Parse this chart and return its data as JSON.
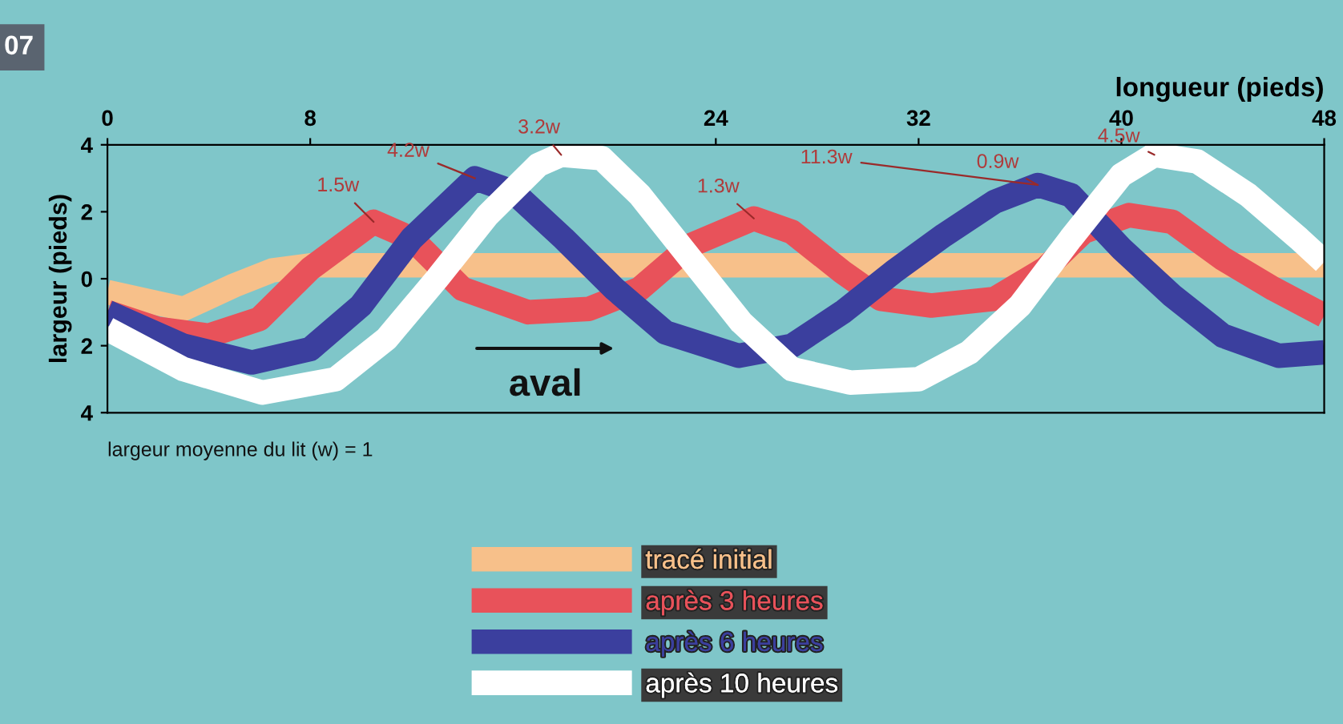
{
  "chart_data": {
    "type": "line",
    "xlabel": "longueur (pieds)",
    "ylabel": "largeur (pieds)",
    "xlim": [
      0,
      48
    ],
    "xticks": [
      0,
      8,
      24,
      32,
      40,
      48
    ],
    "ylim": [
      -4,
      4
    ],
    "yticks": [
      {
        "value": -4,
        "label": "4"
      },
      {
        "value": -2,
        "label": "2"
      },
      0,
      2,
      4
    ],
    "grid": false,
    "legend": "bottom",
    "marker": "none",
    "line_style": "solid",
    "series": [
      {
        "name": "tracé initial",
        "color": "#f7c08a",
        "x": [
          0,
          3,
          5,
          6.5,
          8,
          48
        ],
        "values": [
          -0.4,
          -0.9,
          -0.2,
          0.25,
          0.4,
          0.4
        ]
      },
      {
        "name": "après 3 heures",
        "color": "#e8525a",
        "x": [
          0,
          2,
          4,
          6,
          8,
          10.5,
          12,
          14,
          16.6,
          19,
          21,
          23,
          25.5,
          27,
          29,
          30.5,
          32.5,
          35,
          37,
          38.5,
          40.3,
          42,
          44,
          46,
          48
        ],
        "values": [
          -1.0,
          -1.5,
          -1.7,
          -1.2,
          0.3,
          1.7,
          1.2,
          -0.3,
          -1.0,
          -0.9,
          -0.3,
          1.0,
          1.8,
          1.4,
          0.2,
          -0.6,
          -0.8,
          -0.6,
          0.3,
          1.4,
          1.9,
          1.7,
          0.6,
          -0.3,
          -1.1
        ]
      },
      {
        "name": "après 6 heures",
        "color": "#3b3f9e",
        "x": [
          0,
          3,
          5.7,
          8,
          10,
          12,
          14.5,
          16,
          18,
          20,
          22,
          24.9,
          27,
          29,
          31,
          33,
          35,
          36.7,
          38,
          40,
          42,
          44,
          46.2,
          48
        ],
        "values": [
          -1.0,
          -2.0,
          -2.5,
          -2.1,
          -0.8,
          1.2,
          3.0,
          2.6,
          1.2,
          -0.3,
          -1.6,
          -2.3,
          -2.0,
          -1.0,
          0.2,
          1.3,
          2.3,
          2.8,
          2.5,
          0.9,
          -0.5,
          -1.7,
          -2.3,
          -2.2
        ]
      },
      {
        "name": "après 10 heures",
        "color": "#ffffff",
        "x": [
          0,
          3,
          6.1,
          9,
          11,
          13,
          15,
          17,
          17.9,
          19.5,
          21,
          23,
          25,
          27,
          29.3,
          32,
          34,
          36,
          38,
          40,
          41.3,
          43,
          45,
          47,
          48
        ],
        "values": [
          -1.5,
          -2.7,
          -3.4,
          -3.0,
          -1.8,
          0.0,
          1.9,
          3.4,
          3.7,
          3.6,
          2.5,
          0.6,
          -1.3,
          -2.7,
          -3.1,
          -3.0,
          -2.2,
          -0.8,
          1.2,
          3.1,
          3.7,
          3.5,
          2.5,
          1.2,
          0.5
        ]
      }
    ],
    "annotations": [
      {
        "text": "1.5w",
        "x": 10.5,
        "y": 1.7
      },
      {
        "text": "4.2w",
        "x": 14.5,
        "y": 3.0
      },
      {
        "text": "3.2w",
        "x": 17.9,
        "y": 3.7
      },
      {
        "text": "1.3w",
        "x": 25.5,
        "y": 1.8
      },
      {
        "text": "11.3w",
        "x": 36.7,
        "y": 2.8
      },
      {
        "text": "0.9w",
        "x": 36.7,
        "y": 2.8
      },
      {
        "text": "4.5w",
        "x": 41.3,
        "y": 3.7
      },
      "aval",
      "largeur moyenne du lit (w) = 1",
      "07"
    ]
  }
}
